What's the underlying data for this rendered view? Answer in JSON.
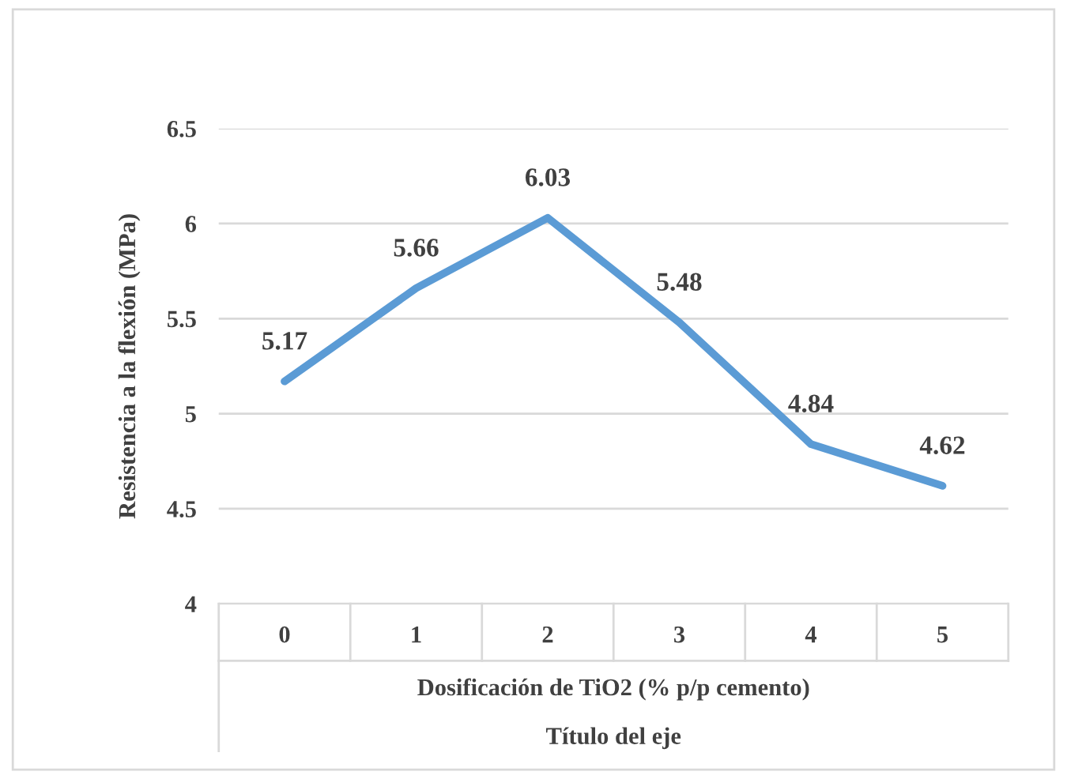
{
  "chart_data": {
    "type": "line",
    "categories": [
      "0",
      "1",
      "2",
      "3",
      "4",
      "5"
    ],
    "series": [
      {
        "color": "#5b9bd5",
        "values": [
          5.17,
          5.66,
          6.03,
          5.48,
          4.84,
          4.62
        ]
      }
    ],
    "ylim": [
      4,
      6.5
    ],
    "yticks": [
      4,
      4.5,
      5,
      5.5,
      6,
      6.5
    ],
    "ylabel": "Resistencia a la flexión (MPa)",
    "xlabel": "Dosificación de TiO2 (% p/p cemento)",
    "annotations": [
      "Título del eje"
    ],
    "grid": "y",
    "data_labels": true,
    "marker": "none",
    "line_style": "solid",
    "legend": false
  }
}
